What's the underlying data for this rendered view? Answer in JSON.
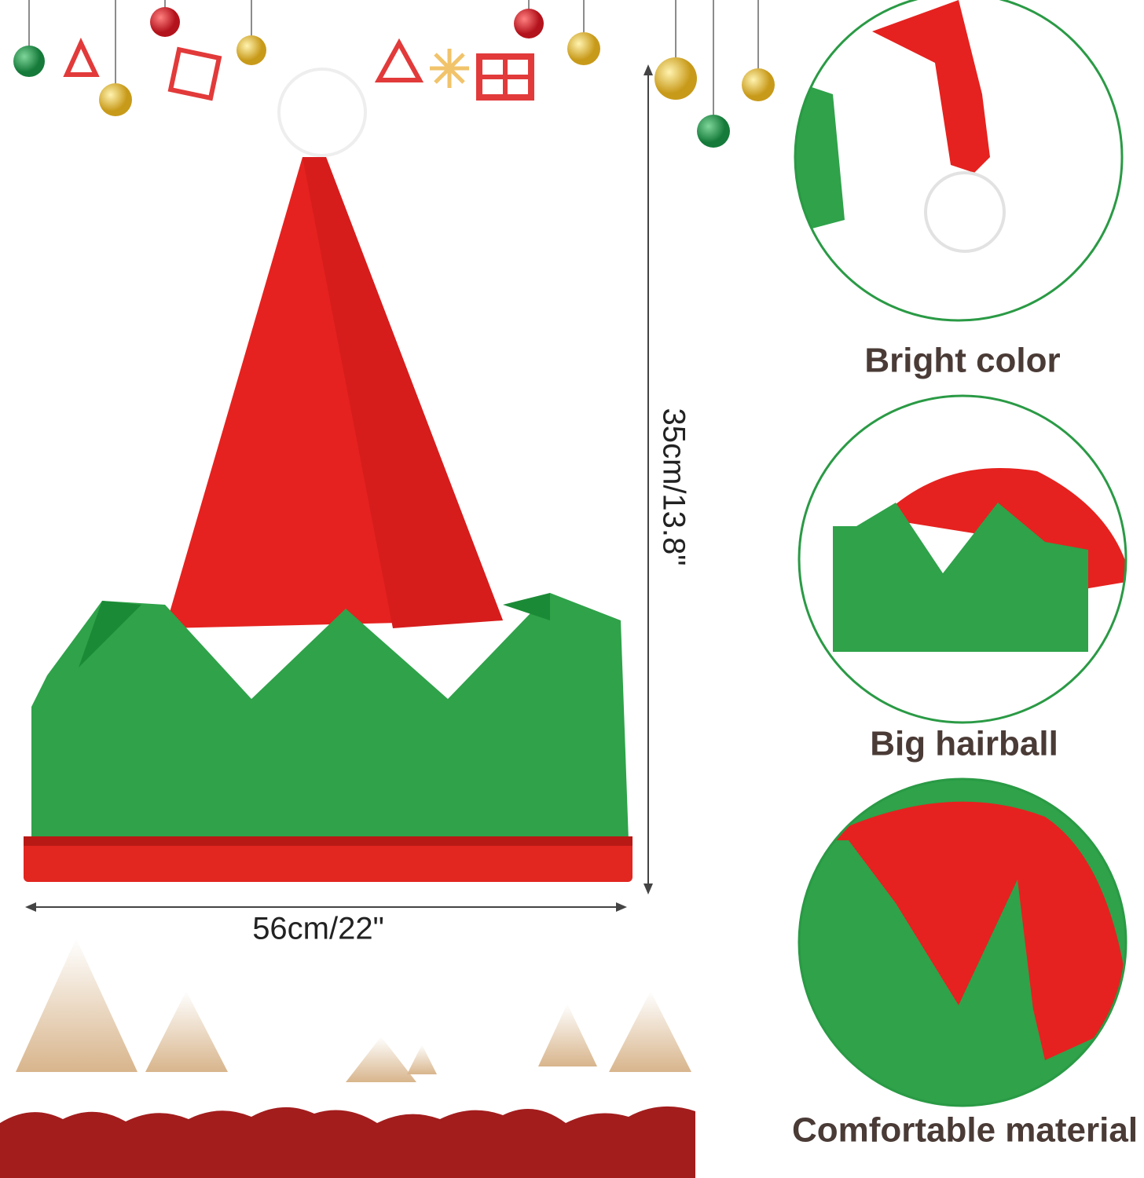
{
  "dimensions": {
    "height": "35cm/13.8\"",
    "width": "56cm/22\""
  },
  "features": [
    {
      "label": "Bright color"
    },
    {
      "label": "Big hairball"
    },
    {
      "label": "Comfortable material"
    }
  ]
}
